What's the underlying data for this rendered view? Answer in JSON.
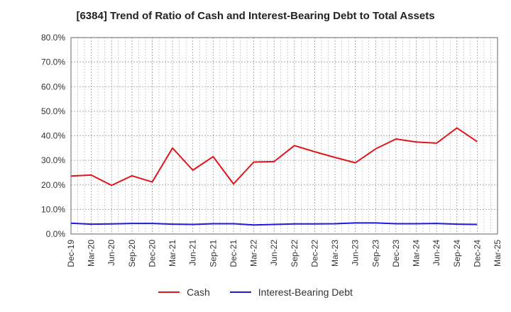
{
  "chart_data": {
    "type": "line",
    "title": "[6384]  Trend of Ratio of Cash and Interest-Bearing Debt to Total Assets",
    "x": [
      "Dec-19",
      "Mar-20",
      "Jun-20",
      "Sep-20",
      "Dec-20",
      "Mar-21",
      "Jun-21",
      "Sep-21",
      "Dec-21",
      "Mar-22",
      "Jun-22",
      "Sep-22",
      "Dec-22",
      "Mar-23",
      "Jun-23",
      "Sep-23",
      "Dec-23",
      "Mar-24",
      "Jun-24",
      "Sep-24",
      "Dec-24",
      "Mar-25"
    ],
    "yticks": [
      "0.0%",
      "10.0%",
      "20.0%",
      "30.0%",
      "40.0%",
      "50.0%",
      "60.0%",
      "70.0%",
      "80.0%"
    ],
    "ylim": [
      0,
      80
    ],
    "y_unit": "%",
    "grid": true,
    "legend_position": "bottom",
    "series": [
      {
        "name": "Cash",
        "color": "#e0161b",
        "values": [
          23.6,
          24.0,
          19.8,
          23.7,
          21.2,
          35.0,
          26.0,
          31.5,
          20.4,
          29.3,
          29.5,
          36.0,
          33.5,
          31.2,
          29.0,
          34.7,
          38.7,
          37.5,
          37.0,
          43.2,
          37.6,
          null
        ]
      },
      {
        "name": "Interest-Bearing Debt",
        "color": "#1a1ae0",
        "values": [
          4.4,
          4.0,
          4.1,
          4.3,
          4.3,
          4.0,
          3.9,
          4.2,
          4.2,
          3.7,
          3.9,
          4.1,
          4.1,
          4.2,
          4.5,
          4.5,
          4.2,
          4.2,
          4.3,
          4.0,
          3.9,
          null
        ]
      }
    ]
  }
}
